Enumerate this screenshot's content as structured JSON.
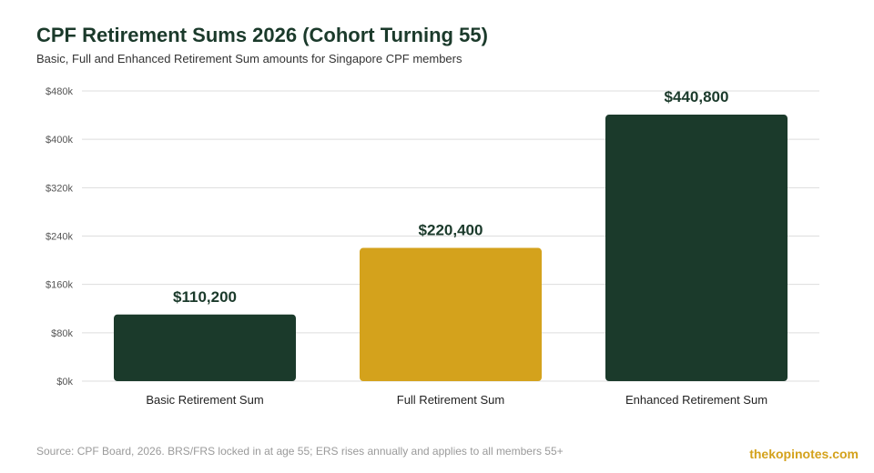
{
  "chart_data": {
    "type": "bar",
    "title": "CPF Retirement Sums 2026 (Cohort Turning 55)",
    "subtitle": "Basic, Full and Enhanced Retirement Sum amounts for Singapore CPF members",
    "categories": [
      "Basic Retirement Sum",
      "Full Retirement Sum",
      "Enhanced Retirement Sum"
    ],
    "values": [
      110200,
      220400,
      440800
    ],
    "data_labels": [
      "$110,200",
      "$220,400",
      "$440,800"
    ],
    "bar_colors": [
      "#1b3a2b",
      "#d4a21c",
      "#1b3a2b"
    ],
    "ylim": [
      0,
      480000
    ],
    "yticks": [
      0,
      80000,
      160000,
      240000,
      320000,
      400000,
      480000
    ],
    "ytick_labels": [
      "$0k",
      "$80k",
      "$160k",
      "$240k",
      "$320k",
      "$400k",
      "$480k"
    ],
    "xlabel": "",
    "ylabel": "",
    "grid": true,
    "legend": "none"
  },
  "footer": {
    "source": "Source: CPF Board, 2026. BRS/FRS locked in at age 55; ERS rises annually and applies to all members 55+",
    "brand": "thekopinotes.com"
  },
  "colors": {
    "title": "#1b3a2b",
    "brand": "#d4a21c",
    "grid": "#dddddd"
  }
}
